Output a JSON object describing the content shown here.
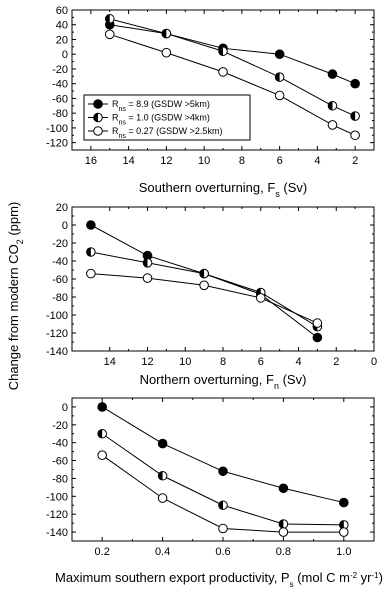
{
  "ylabel_shared": "Change from modern CO₂ (ppm)",
  "legend": [
    {
      "marker": "filled",
      "text": "R = 8.9 (GSDW >5km)"
    },
    {
      "marker": "half",
      "text": "R = 1.0 (GSDW >4km)"
    },
    {
      "marker": "open",
      "text": "R = 0.27 (GSDW >2.5km)"
    }
  ],
  "chart_data": [
    {
      "type": "line",
      "xlabel": "Southern overturning, F_s (Sv)",
      "xlim": [
        17,
        1
      ],
      "ylim": [
        -130,
        60
      ],
      "xticks": [
        16,
        14,
        12,
        10,
        8,
        6,
        4,
        2
      ],
      "yticks": [
        60,
        40,
        20,
        0,
        -20,
        -40,
        -60,
        -80,
        -100,
        -120
      ],
      "series": [
        {
          "marker": "filled",
          "x": [
            15,
            12,
            9,
            6,
            3.2,
            2
          ],
          "y": [
            40,
            28,
            8,
            0,
            -27,
            -40
          ]
        },
        {
          "marker": "half",
          "x": [
            15,
            12,
            9,
            6,
            3.2,
            2
          ],
          "y": [
            48,
            28,
            4,
            -31,
            -70,
            -84
          ]
        },
        {
          "marker": "open",
          "x": [
            15,
            12,
            9,
            6,
            3.2,
            2
          ],
          "y": [
            27,
            2,
            -24,
            -56,
            -96,
            -110
          ]
        }
      ]
    },
    {
      "type": "line",
      "xlabel": "Northern overturning, F_n (Sv)",
      "xlim": [
        16,
        0
      ],
      "ylim": [
        -140,
        20
      ],
      "xticks": [
        14,
        12,
        10,
        8,
        6,
        4,
        2,
        0
      ],
      "yticks": [
        20,
        0,
        -20,
        -40,
        -60,
        -80,
        -100,
        -120,
        -140
      ],
      "series": [
        {
          "marker": "filled",
          "x": [
            15,
            12,
            9,
            6,
            3
          ],
          "y": [
            0,
            -34,
            -54,
            -77,
            -125
          ]
        },
        {
          "marker": "half",
          "x": [
            15,
            12,
            9,
            6,
            3
          ],
          "y": [
            -30,
            -42,
            -54,
            -75,
            -113
          ]
        },
        {
          "marker": "open",
          "x": [
            15,
            12,
            9,
            6,
            3
          ],
          "y": [
            -54,
            -59,
            -67,
            -81,
            -109
          ]
        }
      ]
    },
    {
      "type": "line",
      "xlabel": "Maximum southern export productivity, P_s (mol C m⁻² yr⁻¹)",
      "xlim": [
        0.1,
        1.1
      ],
      "ylim": [
        -150,
        10
      ],
      "xticks": [
        0.2,
        0.4,
        0.6,
        0.8,
        1.0
      ],
      "yticks": [
        0,
        -20,
        -40,
        -60,
        -80,
        -100,
        -120,
        -140
      ],
      "series": [
        {
          "marker": "filled",
          "x": [
            0.2,
            0.4,
            0.6,
            0.8,
            1.0
          ],
          "y": [
            0,
            -41,
            -72,
            -91,
            -107
          ]
        },
        {
          "marker": "half",
          "x": [
            0.2,
            0.4,
            0.6,
            0.8,
            1.0
          ],
          "y": [
            -30,
            -77,
            -110,
            -131,
            -132
          ]
        },
        {
          "marker": "open",
          "x": [
            0.2,
            0.4,
            0.6,
            0.8,
            1.0
          ],
          "y": [
            -54,
            -102,
            -136,
            -140,
            -140
          ]
        }
      ]
    }
  ]
}
